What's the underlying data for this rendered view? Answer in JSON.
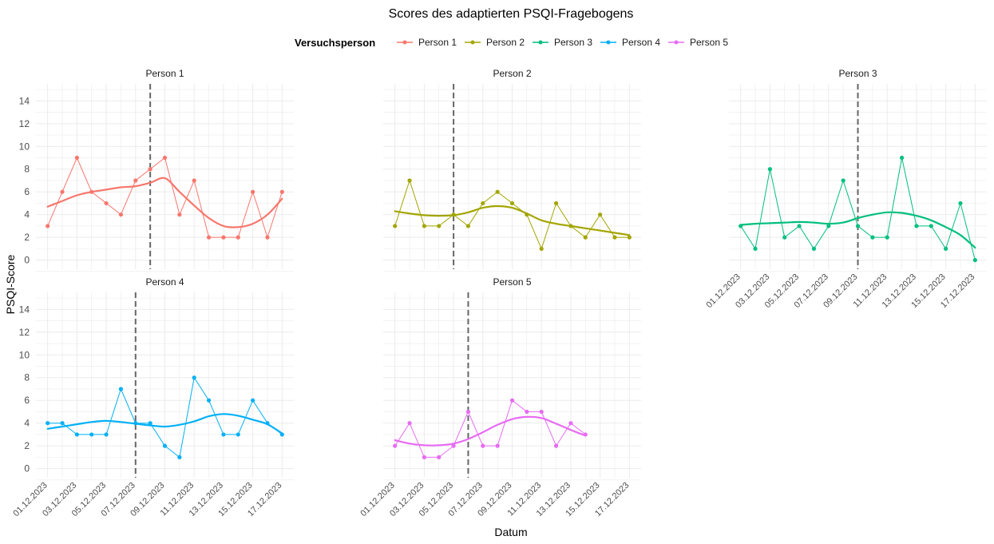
{
  "chart_data": {
    "type": "line",
    "title": "Scores des adaptierten PSQI-Fragebogens",
    "xlabel": "Datum",
    "ylabel": "PSQI-Score",
    "legend": {
      "title": "Versuchsperson",
      "position": "top",
      "entries": [
        "Person 1",
        "Person 2",
        "Person 3",
        "Person 4",
        "Person 5"
      ]
    },
    "x_ticks": [
      "01.12.2023",
      "03.12.2023",
      "05.12.2023",
      "07.12.2023",
      "09.12.2023",
      "11.12.2023",
      "13.12.2023",
      "15.12.2023",
      "17.12.2023"
    ],
    "y_ticks": [
      0,
      2,
      4,
      6,
      8,
      10,
      12,
      14
    ],
    "ylim": [
      -0.8,
      15.5
    ],
    "grid": true,
    "smoothed_trend": true,
    "panels": [
      {
        "name": "Person 1",
        "color": "#F8766D",
        "intervention_date": "08.12.2023",
        "x": [
          "01.12.2023",
          "02.12.2023",
          "03.12.2023",
          "04.12.2023",
          "05.12.2023",
          "06.12.2023",
          "07.12.2023",
          "08.12.2023",
          "09.12.2023",
          "10.12.2023",
          "11.12.2023",
          "12.12.2023",
          "13.12.2023",
          "14.12.2023",
          "15.12.2023",
          "16.12.2023",
          "17.12.2023"
        ],
        "y": [
          3,
          6,
          9,
          6,
          5,
          4,
          7,
          8,
          9,
          4,
          7,
          2,
          2,
          2,
          6,
          2,
          6
        ],
        "trend": [
          4.7,
          5.2,
          5.7,
          6.0,
          6.2,
          6.4,
          6.5,
          6.8,
          7.2,
          6.0,
          4.8,
          3.7,
          3.0,
          2.9,
          3.2,
          4.0,
          5.4
        ]
      },
      {
        "name": "Person 2",
        "color": "#A3A500",
        "intervention_date": "05.12.2023",
        "x": [
          "01.12.2023",
          "02.12.2023",
          "03.12.2023",
          "04.12.2023",
          "05.12.2023",
          "06.12.2023",
          "07.12.2023",
          "08.12.2023",
          "09.12.2023",
          "10.12.2023",
          "11.12.2023",
          "12.12.2023",
          "13.12.2023",
          "14.12.2023",
          "15.12.2023",
          "16.12.2023",
          "17.12.2023"
        ],
        "y": [
          3,
          7,
          3,
          3,
          4,
          3,
          5,
          6,
          5,
          4,
          1,
          5,
          3,
          2,
          4,
          2,
          2
        ],
        "trend": [
          4.3,
          4.1,
          3.95,
          3.9,
          3.95,
          4.2,
          4.6,
          4.75,
          4.6,
          4.1,
          3.5,
          3.2,
          3.0,
          2.8,
          2.6,
          2.4,
          2.2
        ]
      },
      {
        "name": "Person 3",
        "color": "#00BF7D",
        "intervention_date": "09.12.2023",
        "x": [
          "01.12.2023",
          "02.12.2023",
          "03.12.2023",
          "04.12.2023",
          "05.12.2023",
          "06.12.2023",
          "07.12.2023",
          "08.12.2023",
          "09.12.2023",
          "10.12.2023",
          "11.12.2023",
          "12.12.2023",
          "13.12.2023",
          "14.12.2023",
          "15.12.2023",
          "16.12.2023",
          "17.12.2023"
        ],
        "y": [
          3,
          1,
          8,
          2,
          3,
          1,
          3,
          7,
          3,
          2,
          2,
          9,
          3,
          3,
          1,
          5,
          0
        ],
        "trend": [
          3.1,
          3.2,
          3.25,
          3.3,
          3.35,
          3.3,
          3.2,
          3.3,
          3.7,
          4.0,
          4.2,
          4.15,
          3.9,
          3.5,
          2.9,
          2.2,
          1.1
        ]
      },
      {
        "name": "Person 4",
        "color": "#00B0F6",
        "intervention_date": "07.12.2023",
        "x": [
          "01.12.2023",
          "02.12.2023",
          "03.12.2023",
          "04.12.2023",
          "05.12.2023",
          "06.12.2023",
          "07.12.2023",
          "08.12.2023",
          "09.12.2023",
          "10.12.2023",
          "11.12.2023",
          "12.12.2023",
          "13.12.2023",
          "14.12.2023",
          "15.12.2023",
          "16.12.2023",
          "17.12.2023"
        ],
        "y": [
          4,
          4,
          3,
          3,
          3,
          7,
          4,
          4,
          2,
          1,
          8,
          6,
          3,
          3,
          6,
          4,
          3
        ],
        "trend": [
          3.5,
          3.7,
          3.9,
          4.1,
          4.2,
          4.1,
          3.95,
          3.8,
          3.7,
          3.85,
          4.15,
          4.6,
          4.8,
          4.65,
          4.3,
          3.9,
          3.1
        ]
      },
      {
        "name": "Person 5",
        "color": "#E76BF3",
        "intervention_date": "06.12.2023",
        "x": [
          "01.12.2023",
          "02.12.2023",
          "03.12.2023",
          "04.12.2023",
          "05.12.2023",
          "06.12.2023",
          "07.12.2023",
          "08.12.2023",
          "09.12.2023",
          "10.12.2023",
          "11.12.2023",
          "12.12.2023",
          "13.12.2023",
          "14.12.2023"
        ],
        "y": [
          2,
          4,
          1,
          1,
          2,
          5,
          2,
          2,
          6,
          5,
          5,
          2,
          4,
          3
        ],
        "trend": [
          2.5,
          2.2,
          2.05,
          2.05,
          2.2,
          2.6,
          3.2,
          3.85,
          4.35,
          4.55,
          4.45,
          3.95,
          3.4,
          2.9
        ]
      }
    ]
  }
}
